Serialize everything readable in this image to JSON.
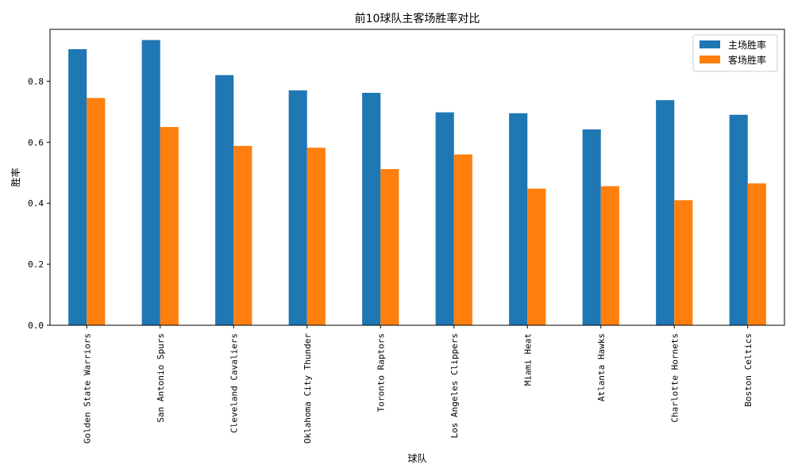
{
  "chart_data": {
    "type": "bar",
    "title": "前10球队主客场胜率对比",
    "xlabel": "球队",
    "ylabel": "胜率",
    "categories": [
      "Golden State Warriors",
      "San Antonio Spurs",
      "Cleveland Cavaliers",
      "Oklahoma City Thunder",
      "Toronto Raptors",
      "Los Angeles Clippers",
      "Miami Heat",
      "Atlanta Hawks",
      "Charlotte Hornets",
      "Boston Celtics"
    ],
    "series": [
      {
        "name": "主场胜率",
        "color": "#1f77b4",
        "values": [
          0.905,
          0.935,
          0.82,
          0.77,
          0.762,
          0.698,
          0.695,
          0.642,
          0.738,
          0.69
        ]
      },
      {
        "name": "客场胜率",
        "color": "#ff7f0e",
        "values": [
          0.745,
          0.65,
          0.588,
          0.582,
          0.512,
          0.56,
          0.448,
          0.456,
          0.41,
          0.465
        ]
      }
    ],
    "ylim": [
      0,
      0.97
    ],
    "yticks": [
      0.0,
      0.2,
      0.4,
      0.6,
      0.8
    ],
    "grid": false,
    "legend_position": "top-right"
  }
}
